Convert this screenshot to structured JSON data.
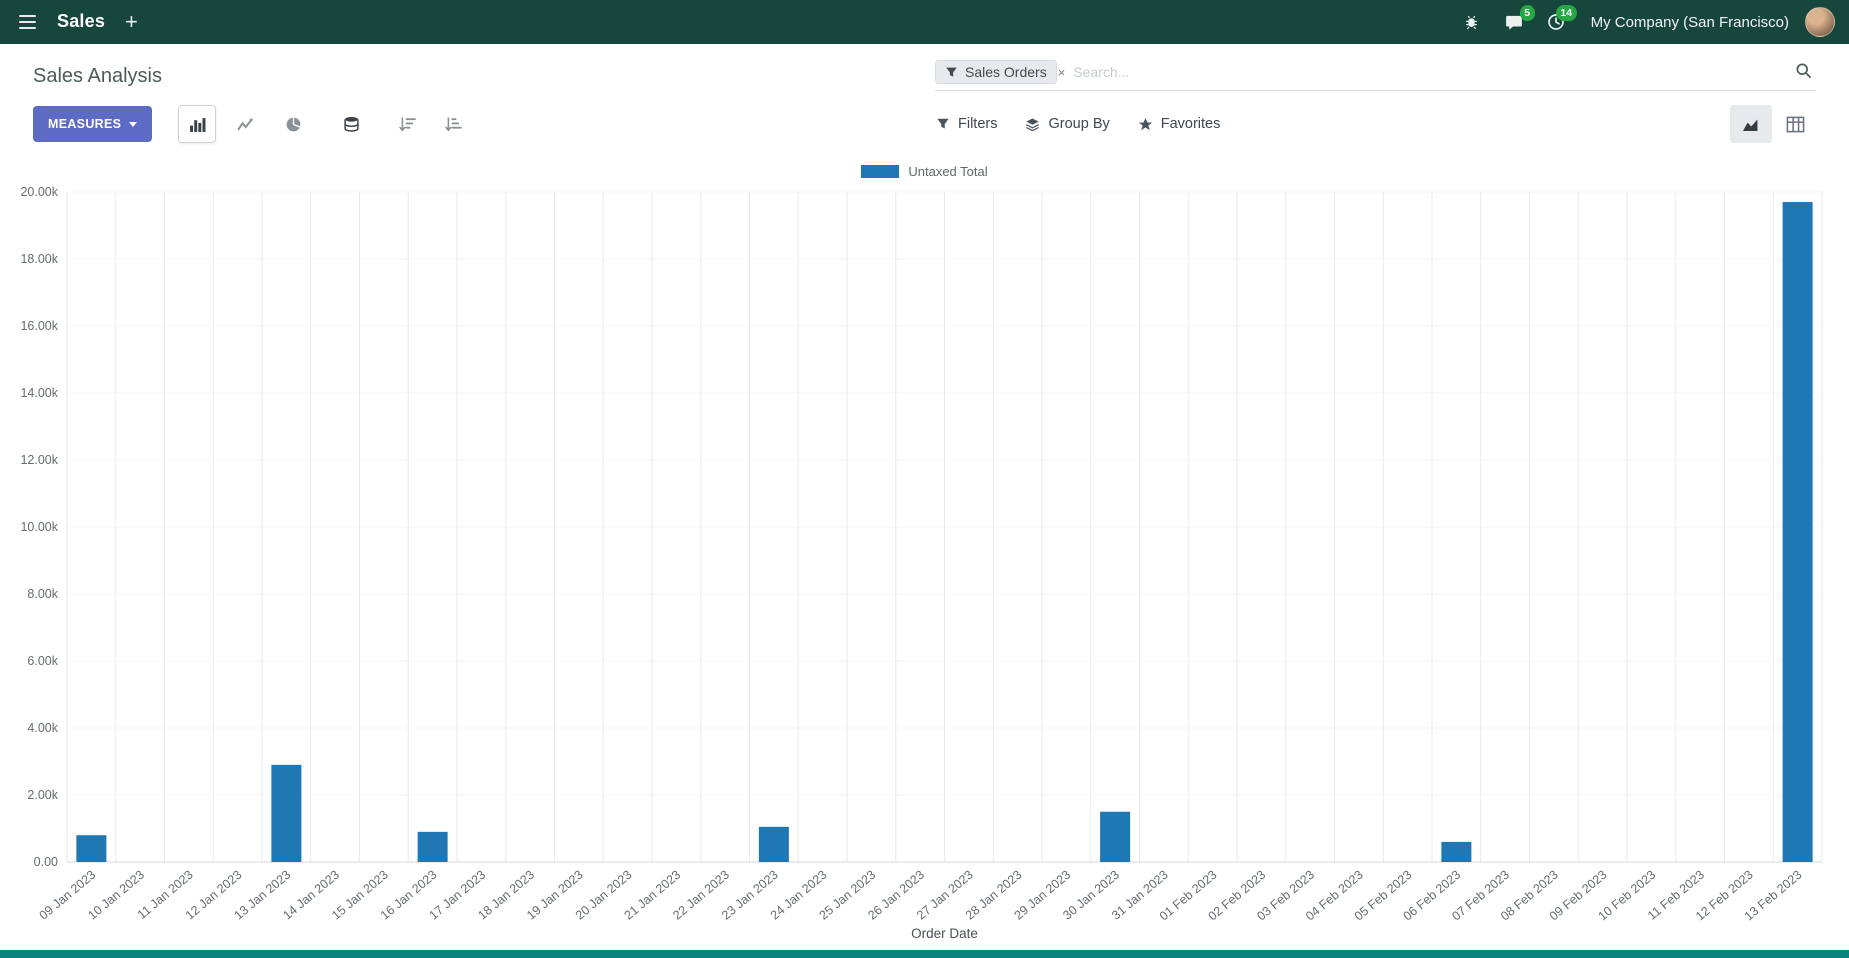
{
  "navbar": {
    "app_name": "Sales",
    "new_tab": "+",
    "messages_badge": "5",
    "activities_badge": "14",
    "company": "My Company (San Francisco)"
  },
  "control_panel": {
    "title": "Sales Analysis",
    "measures_button": "MEASURES",
    "search": {
      "facet_label": "Sales Orders",
      "facet_remove": "×",
      "placeholder": "Search..."
    },
    "filters": "Filters",
    "group_by": "Group By",
    "favorites": "Favorites"
  },
  "colors": {
    "navbar_bg": "#17463d",
    "primary_button": "#5e6bc4",
    "badge_green": "#28a745",
    "bar": "#1f77b4",
    "bottom_strip": "#0a837e"
  },
  "chart_data": {
    "type": "bar",
    "title": "",
    "xlabel": "Order Date",
    "ylabel": "",
    "ylim": [
      0,
      20000
    ],
    "ytick_step": 2000,
    "ytick_labels": [
      "0.00",
      "2.00k",
      "4.00k",
      "6.00k",
      "8.00k",
      "10.00k",
      "12.00k",
      "14.00k",
      "16.00k",
      "18.00k",
      "20.00k"
    ],
    "grid": "vertical",
    "legend_position": "top-center",
    "categories": [
      "09 Jan 2023",
      "10 Jan 2023",
      "11 Jan 2023",
      "12 Jan 2023",
      "13 Jan 2023",
      "14 Jan 2023",
      "15 Jan 2023",
      "16 Jan 2023",
      "17 Jan 2023",
      "18 Jan 2023",
      "19 Jan 2023",
      "20 Jan 2023",
      "21 Jan 2023",
      "22 Jan 2023",
      "23 Jan 2023",
      "24 Jan 2023",
      "25 Jan 2023",
      "26 Jan 2023",
      "27 Jan 2023",
      "28 Jan 2023",
      "29 Jan 2023",
      "30 Jan 2023",
      "31 Jan 2023",
      "01 Feb 2023",
      "02 Feb 2023",
      "03 Feb 2023",
      "04 Feb 2023",
      "05 Feb 2023",
      "06 Feb 2023",
      "07 Feb 2023",
      "08 Feb 2023",
      "09 Feb 2023",
      "10 Feb 2023",
      "11 Feb 2023",
      "12 Feb 2023",
      "13 Feb 2023"
    ],
    "series": [
      {
        "name": "Untaxed Total",
        "color": "#1f77b4",
        "values": [
          800,
          0,
          0,
          0,
          2900,
          0,
          0,
          900,
          0,
          0,
          0,
          0,
          0,
          0,
          1050,
          0,
          0,
          0,
          0,
          0,
          0,
          1500,
          0,
          0,
          0,
          0,
          0,
          0,
          600,
          0,
          0,
          0,
          0,
          0,
          0,
          19700
        ]
      }
    ]
  }
}
